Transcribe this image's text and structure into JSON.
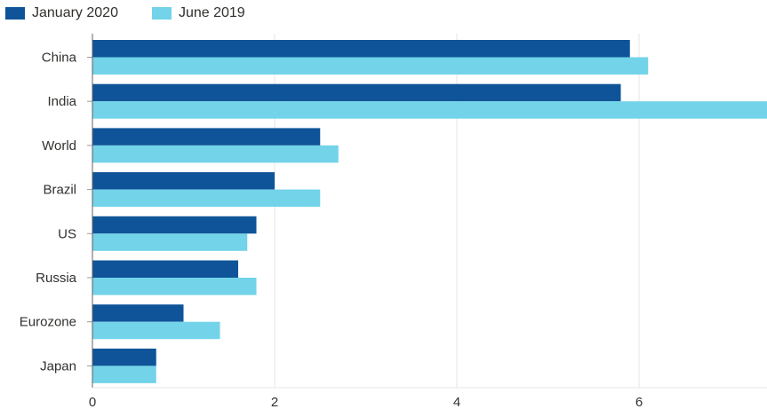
{
  "chart_data": {
    "type": "bar",
    "orientation": "horizontal",
    "categories": [
      "China",
      "India",
      "World",
      "Brazil",
      "US",
      "Russia",
      "Eurozone",
      "Japan"
    ],
    "series": [
      {
        "name": "January 2020",
        "color": "#0f5499",
        "values": [
          5.9,
          5.8,
          2.5,
          2.0,
          1.8,
          1.6,
          1.0,
          0.7
        ]
      },
      {
        "name": "June 2019",
        "color": "#72d3e9",
        "values": [
          6.1,
          7.5,
          2.7,
          2.5,
          1.7,
          1.8,
          1.4,
          0.7
        ]
      }
    ],
    "x_ticks": [
      "0",
      "2",
      "4",
      "6"
    ],
    "xlim": [
      0,
      7.4
    ],
    "grid": "vertical",
    "legend_position": "top-left",
    "title": "",
    "xlabel": "",
    "ylabel": ""
  }
}
